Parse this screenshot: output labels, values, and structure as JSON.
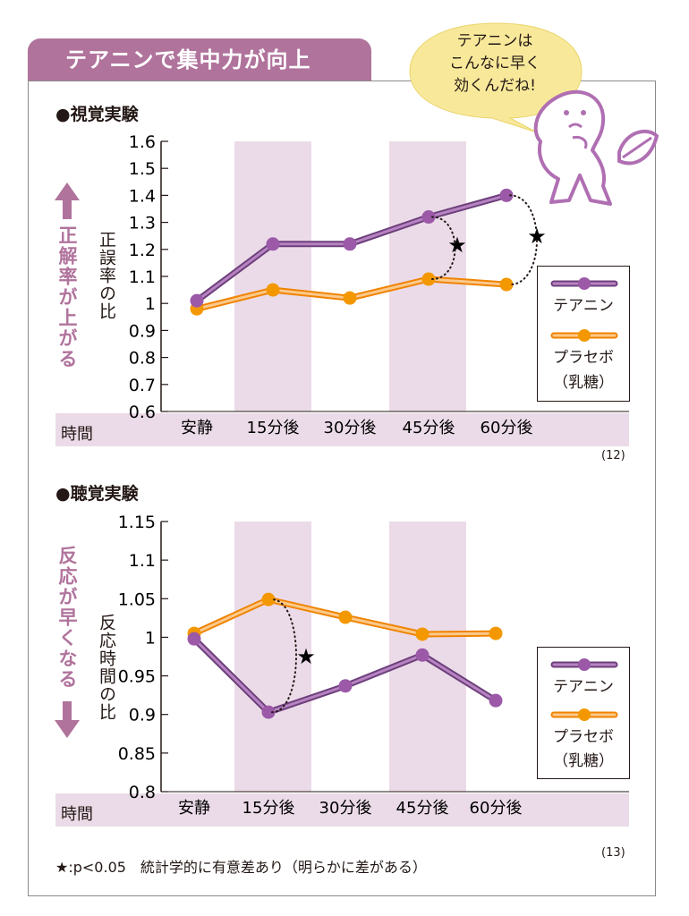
{
  "header": {
    "title": "テアニンで集中力が向上",
    "bubble_lines": [
      "テアニンは",
      "こんなに早く",
      "効くんだね!"
    ]
  },
  "colors": {
    "theanine": "#9b59a8",
    "placebo": "#f39800",
    "accent": "#b0739c",
    "band": "#ebdbe8"
  },
  "time_label": "時間",
  "footnote": "★:p<0.05　統計学的に有意差あり（明らかに差がある）",
  "legend": {
    "theanine": "テアニン",
    "placebo_line1": "プラセボ",
    "placebo_line2": "（乳糖）"
  },
  "visual": {
    "section_title": "●視覚実験",
    "side_label": "正解率が上がる",
    "axis_title": "正誤率の比",
    "ref": "(12)"
  },
  "auditory": {
    "section_title": "●聴覚実験",
    "side_label": "反応が早くなる",
    "axis_title": "反応時間の比",
    "ref": "(13)"
  },
  "chart_data": [
    {
      "type": "line",
      "title": "●視覚実験",
      "ylabel": "正誤率の比",
      "xlabel": "時間",
      "categories": [
        "安静",
        "15分後",
        "30分後",
        "45分後",
        "60分後"
      ],
      "ylim": [
        0.6,
        1.6
      ],
      "yticks": [
        "0.6",
        "0.7",
        "0.8",
        "0.9",
        "1",
        "1.1",
        "1.2",
        "1.3",
        "1.4",
        "1.5",
        "1.6"
      ],
      "ytick_values": [
        0.6,
        0.7,
        0.8,
        0.9,
        1.0,
        1.1,
        1.2,
        1.3,
        1.4,
        1.5,
        1.6
      ],
      "shaded_categories": [
        1,
        3
      ],
      "series": [
        {
          "name": "テアニン",
          "values": [
            1.01,
            1.22,
            1.22,
            1.32,
            1.4
          ]
        },
        {
          "name": "プラセボ（乳糖）",
          "values": [
            0.98,
            1.05,
            1.02,
            1.09,
            1.07
          ]
        }
      ],
      "significance": [
        {
          "category_index": 3,
          "marker": "★"
        },
        {
          "category_index": 4,
          "marker": "★"
        }
      ],
      "legend": "right"
    },
    {
      "type": "line",
      "title": "●聴覚実験",
      "ylabel": "反応時間の比",
      "xlabel": "時間",
      "categories": [
        "安静",
        "15分後",
        "30分後",
        "45分後",
        "60分後"
      ],
      "ylim": [
        0.8,
        1.15
      ],
      "yticks": [
        "0.8",
        "0.85",
        "0.9",
        "0.95",
        "1",
        "1.05",
        "1.1",
        "1.15"
      ],
      "ytick_values": [
        0.8,
        0.85,
        0.9,
        0.95,
        1.0,
        1.05,
        1.1,
        1.15
      ],
      "shaded_categories": [
        1,
        3
      ],
      "series": [
        {
          "name": "テアニン",
          "values": [
            0.998,
            0.903,
            0.937,
            0.977,
            0.918
          ]
        },
        {
          "name": "プラセボ（乳糖）",
          "values": [
            1.005,
            1.049,
            1.026,
            1.004,
            1.005
          ]
        }
      ],
      "significance": [
        {
          "category_index": 1,
          "marker": "★"
        }
      ],
      "legend": "right"
    }
  ]
}
